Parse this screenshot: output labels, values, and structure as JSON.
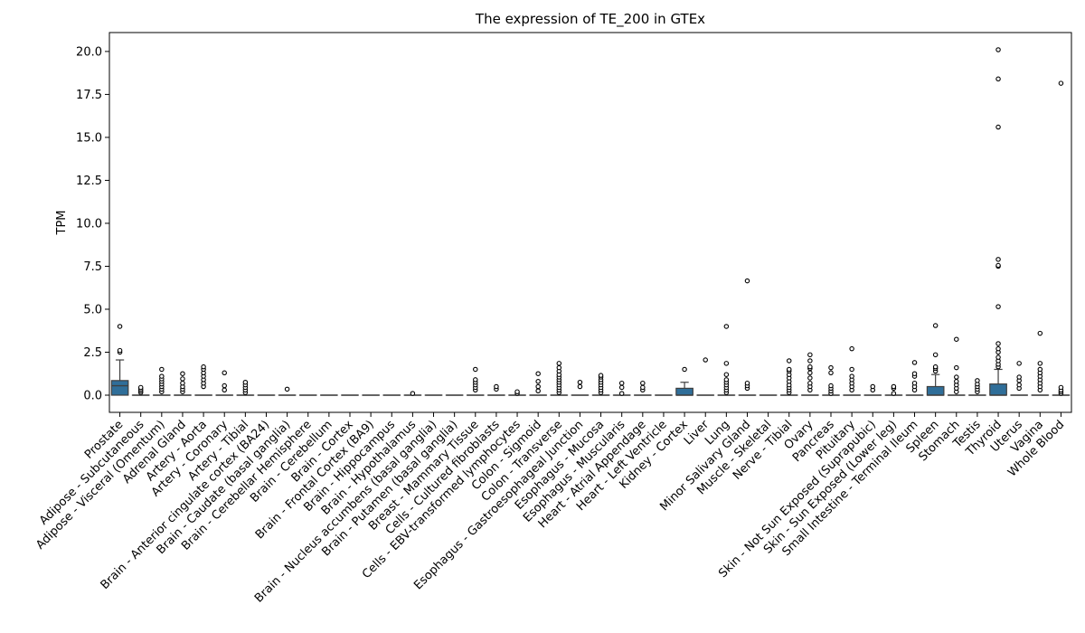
{
  "chart_data": {
    "type": "box",
    "title": "The expression of TE_200 in GTEx",
    "xlabel": "",
    "ylabel": "TPM",
    "ylim": [
      -1.0,
      21.1
    ],
    "yticks": [
      0.0,
      2.5,
      5.0,
      7.5,
      10.0,
      12.5,
      15.0,
      17.5,
      20.0
    ],
    "ytick_labels": [
      "0.0",
      "2.5",
      "5.0",
      "7.5",
      "10.0",
      "12.5",
      "15.0",
      "17.5",
      "20.0"
    ],
    "grid": false,
    "box_color": "#2f6e99",
    "categories": [
      "Prostate",
      "Adipose - Subcutaneous",
      "Adipose - Visceral (Omentum)",
      "Adrenal Gland",
      "Artery - Aorta",
      "Artery - Coronary",
      "Artery - Tibial",
      "Brain - Anterior cingulate cortex (BA24)",
      "Brain - Caudate (basal ganglia)",
      "Brain - Cerebellar Hemisphere",
      "Brain - Cerebellum",
      "Brain - Cortex",
      "Brain - Frontal Cortex (BA9)",
      "Brain - Hippocampus",
      "Brain - Hypothalamus",
      "Brain - Nucleus accumbens (basal ganglia)",
      "Brain - Putamen (basal ganglia)",
      "Breast - Mammary Tissue",
      "Cells - Cultured fibroblasts",
      "Cells - EBV-transformed lymphocytes",
      "Colon - Sigmoid",
      "Colon - Transverse",
      "Esophagus - Gastroesophageal Junction",
      "Esophagus - Mucosa",
      "Esophagus - Muscularis",
      "Heart - Atrial Appendage",
      "Heart - Left Ventricle",
      "Kidney - Cortex",
      "Liver",
      "Lung",
      "Minor Salivary Gland",
      "Muscle - Skeletal",
      "Nerve - Tibial",
      "Ovary",
      "Pancreas",
      "Pituitary",
      "Skin - Not Sun Exposed (Suprapubic)",
      "Skin - Sun Exposed (Lower leg)",
      "Small Intestine - Terminal Ileum",
      "Spleen",
      "Stomach",
      "Testis",
      "Thyroid",
      "Uterus",
      "Vagina",
      "Whole Blood"
    ],
    "boxes": [
      {
        "q1": 0.0,
        "median": 0.55,
        "q3": 0.85,
        "whislo": 0.0,
        "whishi": 2.05,
        "fliers": [
          2.5,
          2.6,
          4.0
        ]
      },
      {
        "q1": 0.0,
        "median": 0.0,
        "q3": 0.0,
        "whislo": 0.0,
        "whishi": 0.0,
        "fliers": [
          0.15,
          0.25,
          0.35,
          0.45
        ]
      },
      {
        "q1": 0.0,
        "median": 0.0,
        "q3": 0.0,
        "whislo": 0.0,
        "whishi": 0.0,
        "fliers": [
          0.2,
          0.35,
          0.5,
          0.65,
          0.8,
          0.95,
          1.1,
          1.5
        ]
      },
      {
        "q1": 0.0,
        "median": 0.0,
        "q3": 0.0,
        "whislo": 0.0,
        "whishi": 0.0,
        "fliers": [
          0.2,
          0.35,
          0.5,
          0.7,
          0.95,
          1.25
        ]
      },
      {
        "q1": 0.0,
        "median": 0.0,
        "q3": 0.0,
        "whislo": 0.0,
        "whishi": 0.0,
        "fliers": [
          0.5,
          0.7,
          0.9,
          1.1,
          1.3,
          1.5,
          1.65
        ]
      },
      {
        "q1": 0.0,
        "median": 0.0,
        "q3": 0.0,
        "whislo": 0.0,
        "whishi": 0.0,
        "fliers": [
          0.3,
          0.55,
          1.3
        ]
      },
      {
        "q1": 0.0,
        "median": 0.0,
        "q3": 0.0,
        "whislo": 0.0,
        "whishi": 0.0,
        "fliers": [
          0.15,
          0.3,
          0.45,
          0.6,
          0.75
        ]
      },
      {
        "q1": 0.0,
        "median": 0.0,
        "q3": 0.0,
        "whislo": 0.0,
        "whishi": 0.0,
        "fliers": []
      },
      {
        "q1": 0.0,
        "median": 0.0,
        "q3": 0.0,
        "whislo": 0.0,
        "whishi": 0.0,
        "fliers": [
          0.35
        ]
      },
      {
        "q1": 0.0,
        "median": 0.0,
        "q3": 0.0,
        "whislo": 0.0,
        "whishi": 0.0,
        "fliers": []
      },
      {
        "q1": 0.0,
        "median": 0.0,
        "q3": 0.0,
        "whislo": 0.0,
        "whishi": 0.0,
        "fliers": []
      },
      {
        "q1": 0.0,
        "median": 0.0,
        "q3": 0.0,
        "whislo": 0.0,
        "whishi": 0.0,
        "fliers": []
      },
      {
        "q1": 0.0,
        "median": 0.0,
        "q3": 0.0,
        "whislo": 0.0,
        "whishi": 0.0,
        "fliers": []
      },
      {
        "q1": 0.0,
        "median": 0.0,
        "q3": 0.0,
        "whislo": 0.0,
        "whishi": 0.0,
        "fliers": []
      },
      {
        "q1": 0.0,
        "median": 0.0,
        "q3": 0.0,
        "whislo": 0.0,
        "whishi": 0.0,
        "fliers": [
          0.1
        ]
      },
      {
        "q1": 0.0,
        "median": 0.0,
        "q3": 0.0,
        "whislo": 0.0,
        "whishi": 0.0,
        "fliers": []
      },
      {
        "q1": 0.0,
        "median": 0.0,
        "q3": 0.0,
        "whislo": 0.0,
        "whishi": 0.0,
        "fliers": []
      },
      {
        "q1": 0.0,
        "median": 0.0,
        "q3": 0.0,
        "whislo": 0.0,
        "whishi": 0.0,
        "fliers": [
          0.3,
          0.45,
          0.6,
          0.75,
          0.9,
          1.5
        ]
      },
      {
        "q1": 0.0,
        "median": 0.0,
        "q3": 0.0,
        "whislo": 0.0,
        "whishi": 0.0,
        "fliers": [
          0.35,
          0.5
        ]
      },
      {
        "q1": 0.0,
        "median": 0.0,
        "q3": 0.0,
        "whislo": 0.0,
        "whishi": 0.0,
        "fliers": [
          0.1,
          0.2
        ]
      },
      {
        "q1": 0.0,
        "median": 0.0,
        "q3": 0.0,
        "whislo": 0.0,
        "whishi": 0.0,
        "fliers": [
          0.25,
          0.5,
          0.8,
          1.25
        ]
      },
      {
        "q1": 0.0,
        "median": 0.0,
        "q3": 0.0,
        "whislo": 0.0,
        "whishi": 0.0,
        "fliers": [
          0.15,
          0.3,
          0.45,
          0.6,
          0.75,
          0.9,
          1.05,
          1.2,
          1.4,
          1.6,
          1.85
        ]
      },
      {
        "q1": 0.0,
        "median": 0.0,
        "q3": 0.0,
        "whislo": 0.0,
        "whishi": 0.0,
        "fliers": [
          0.5,
          0.75
        ]
      },
      {
        "q1": 0.0,
        "median": 0.0,
        "q3": 0.0,
        "whislo": 0.0,
        "whishi": 0.0,
        "fliers": [
          0.15,
          0.3,
          0.45,
          0.6,
          0.75,
          0.9,
          1.05,
          1.15
        ]
      },
      {
        "q1": 0.0,
        "median": 0.0,
        "q3": 0.0,
        "whislo": 0.0,
        "whishi": 0.0,
        "fliers": [
          0.1,
          0.45,
          0.7
        ]
      },
      {
        "q1": 0.0,
        "median": 0.0,
        "q3": 0.0,
        "whislo": 0.0,
        "whishi": 0.0,
        "fliers": [
          0.3,
          0.45,
          0.7
        ]
      },
      {
        "q1": 0.0,
        "median": 0.0,
        "q3": 0.0,
        "whislo": 0.0,
        "whishi": 0.0,
        "fliers": []
      },
      {
        "q1": 0.0,
        "median": 0.0,
        "q3": 0.4,
        "whislo": 0.0,
        "whishi": 0.75,
        "fliers": [
          1.5
        ]
      },
      {
        "q1": 0.0,
        "median": 0.0,
        "q3": 0.0,
        "whislo": 0.0,
        "whishi": 0.0,
        "fliers": [
          2.05
        ]
      },
      {
        "q1": 0.0,
        "median": 0.0,
        "q3": 0.0,
        "whislo": 0.0,
        "whishi": 0.0,
        "fliers": [
          0.15,
          0.3,
          0.45,
          0.6,
          0.75,
          0.9,
          1.2,
          1.85,
          4.0
        ]
      },
      {
        "q1": 0.0,
        "median": 0.0,
        "q3": 0.0,
        "whislo": 0.0,
        "whishi": 0.0,
        "fliers": [
          0.4,
          0.55,
          0.7,
          6.65
        ]
      },
      {
        "q1": 0.0,
        "median": 0.0,
        "q3": 0.0,
        "whislo": 0.0,
        "whishi": 0.0,
        "fliers": []
      },
      {
        "q1": 0.0,
        "median": 0.0,
        "q3": 0.0,
        "whislo": 0.0,
        "whishi": 0.0,
        "fliers": [
          0.15,
          0.3,
          0.45,
          0.6,
          0.8,
          1.0,
          1.2,
          1.4,
          1.5,
          2.0
        ]
      },
      {
        "q1": 0.0,
        "median": 0.0,
        "q3": 0.0,
        "whislo": 0.0,
        "whishi": 0.0,
        "fliers": [
          0.3,
          0.5,
          0.7,
          1.0,
          1.3,
          1.55,
          1.65,
          2.0,
          2.35
        ]
      },
      {
        "q1": 0.0,
        "median": 0.0,
        "q3": 0.0,
        "whislo": 0.0,
        "whishi": 0.0,
        "fliers": [
          0.1,
          0.25,
          0.4,
          0.55,
          1.3,
          1.6
        ]
      },
      {
        "q1": 0.0,
        "median": 0.0,
        "q3": 0.0,
        "whislo": 0.0,
        "whishi": 0.0,
        "fliers": [
          0.3,
          0.5,
          0.7,
          0.9,
          1.1,
          1.5,
          2.7
        ]
      },
      {
        "q1": 0.0,
        "median": 0.0,
        "q3": 0.0,
        "whislo": 0.0,
        "whishi": 0.0,
        "fliers": [
          0.3,
          0.5
        ]
      },
      {
        "q1": 0.0,
        "median": 0.0,
        "q3": 0.0,
        "whislo": 0.0,
        "whishi": 0.0,
        "fliers": [
          0.1,
          0.4,
          0.5
        ]
      },
      {
        "q1": 0.0,
        "median": 0.0,
        "q3": 0.0,
        "whislo": 0.0,
        "whishi": 0.0,
        "fliers": [
          0.3,
          0.5,
          0.7,
          1.1,
          1.25,
          1.9
        ]
      },
      {
        "q1": 0.0,
        "median": 0.0,
        "q3": 0.5,
        "whislo": 0.0,
        "whishi": 1.2,
        "fliers": [
          1.4,
          1.55,
          1.65,
          2.35,
          4.05
        ]
      },
      {
        "q1": 0.0,
        "median": 0.0,
        "q3": 0.0,
        "whislo": 0.0,
        "whishi": 0.0,
        "fliers": [
          0.2,
          0.4,
          0.6,
          0.8,
          1.05,
          1.6,
          3.25
        ]
      },
      {
        "q1": 0.0,
        "median": 0.0,
        "q3": 0.0,
        "whislo": 0.0,
        "whishi": 0.0,
        "fliers": [
          0.2,
          0.35,
          0.5,
          0.65,
          0.85
        ]
      },
      {
        "q1": 0.0,
        "median": 0.0,
        "q3": 0.65,
        "whislo": 0.0,
        "whishi": 1.5,
        "fliers": [
          1.65,
          1.8,
          2.0,
          2.2,
          2.5,
          2.7,
          3.0,
          5.15,
          7.5,
          7.55,
          7.9,
          15.6,
          18.4,
          20.1
        ]
      },
      {
        "q1": 0.0,
        "median": 0.0,
        "q3": 0.0,
        "whislo": 0.0,
        "whishi": 0.0,
        "fliers": [
          0.4,
          0.6,
          0.85,
          1.05,
          1.85
        ]
      },
      {
        "q1": 0.0,
        "median": 0.0,
        "q3": 0.0,
        "whislo": 0.0,
        "whishi": 0.0,
        "fliers": [
          0.3,
          0.5,
          0.7,
          0.9,
          1.1,
          1.3,
          1.5,
          1.85,
          3.6
        ]
      },
      {
        "q1": 0.0,
        "median": 0.0,
        "q3": 0.0,
        "whislo": 0.0,
        "whishi": 0.0,
        "fliers": [
          0.1,
          0.2,
          0.3,
          0.45,
          18.15
        ]
      }
    ]
  }
}
